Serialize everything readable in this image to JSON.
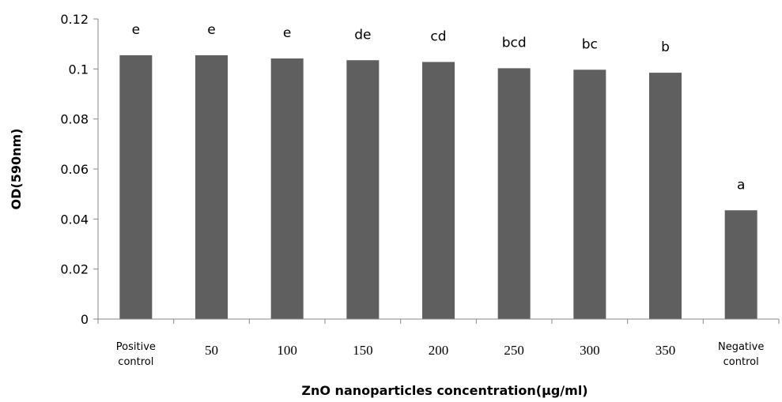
{
  "chart_data": {
    "type": "bar",
    "categories": [
      "Positive\ncontrol",
      "50",
      "100",
      "150",
      "200",
      "250",
      "300",
      "350",
      "Negative\ncontrol"
    ],
    "values": [
      0.1055,
      0.1055,
      0.1042,
      0.1035,
      0.1028,
      0.1003,
      0.0997,
      0.0985,
      0.0435
    ],
    "annotations": [
      "e",
      "e",
      "e",
      "de",
      "cd",
      "bcd",
      "bc",
      "b",
      "a"
    ],
    "title": "",
    "xlabel": "ZnO nanoparticles concentration(μg/ml)",
    "ylabel": "OD(590nm)",
    "ylim": [
      0,
      0.12
    ],
    "yticks": [
      "0",
      "0.02",
      "0.04",
      "0.06",
      "0.08",
      "0.1",
      "0.12"
    ],
    "grid": false,
    "legend": "none",
    "bar_color": "#5f5f5f",
    "axis_color": "#888888"
  }
}
